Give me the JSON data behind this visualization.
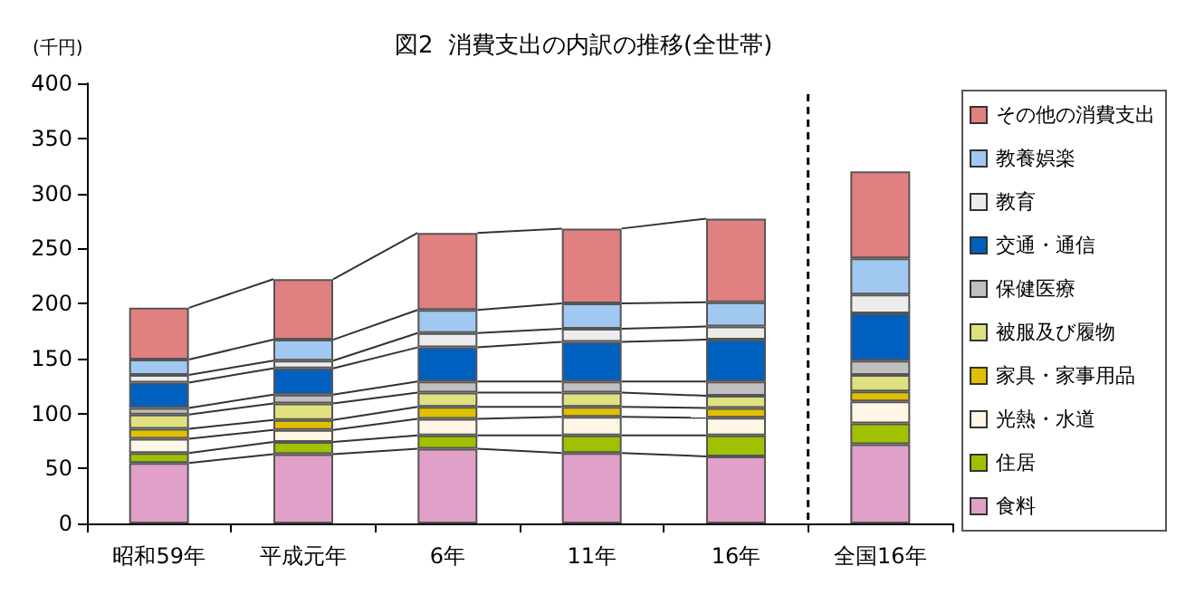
{
  "chart_data": {
    "type": "bar",
    "title": "図2  消費支出の内訳の推移(全世帯)",
    "ylabel": "(千円)",
    "stacked": true,
    "categories": [
      "昭和59年",
      "平成元年",
      "6年",
      "11年",
      "16年",
      "全国16年"
    ],
    "series": [
      {
        "name": "食料",
        "color": "#e0a0c8",
        "values": [
          55,
          63,
          68,
          64,
          61,
          72
        ]
      },
      {
        "name": "住居",
        "color": "#a0c000",
        "values": [
          9,
          11,
          12,
          16,
          19,
          19
        ]
      },
      {
        "name": "光熱・水道",
        "color": "#fff6e6",
        "values": [
          13,
          11,
          15,
          17,
          16,
          20
        ]
      },
      {
        "name": "家具・家事用品",
        "color": "#e0c000",
        "values": [
          9,
          9,
          11,
          9,
          9,
          9
        ]
      },
      {
        "name": "被服及び履物",
        "color": "#e0e080",
        "values": [
          13,
          15,
          13,
          13,
          11,
          15
        ]
      },
      {
        "name": "保健医療",
        "color": "#c0c0c0",
        "values": [
          6,
          8,
          10,
          10,
          13,
          13
        ]
      },
      {
        "name": "交通・通信",
        "color": "#0060c0",
        "values": [
          23,
          24,
          31,
          36,
          38,
          43
        ]
      },
      {
        "name": "教育",
        "color": "#ececec",
        "values": [
          7,
          7,
          13,
          12,
          12,
          17
        ]
      },
      {
        "name": "教養娯楽",
        "color": "#a0c8f0",
        "values": [
          14,
          19,
          21,
          23,
          22,
          33
        ]
      },
      {
        "name": "その他の消費支出",
        "color": "#e08080",
        "values": [
          47,
          55,
          70,
          68,
          76,
          79
        ]
      }
    ],
    "ylim": [
      0,
      400
    ],
    "yticks": [
      0,
      50,
      100,
      150,
      200,
      250,
      300,
      350,
      400
    ],
    "legend": "right"
  }
}
